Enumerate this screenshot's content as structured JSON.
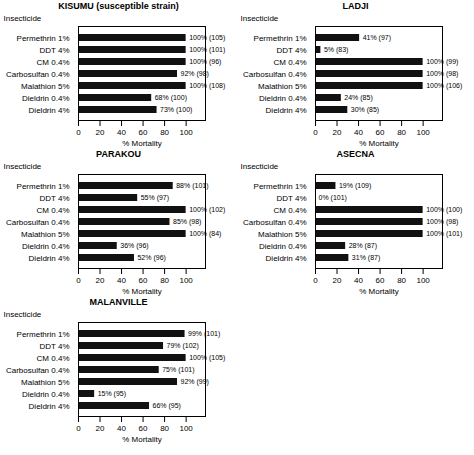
{
  "chart_data": [
    {
      "type": "bar",
      "orientation": "horizontal",
      "title": "KISUMU (susceptible strain)",
      "categories": [
        "Permethrin 1%",
        "DDT 4%",
        "CM 0.4%",
        "Carbosulfan 0.4%",
        "Malathion 5%",
        "Dieldrin 0.4%",
        "Dieldrin 4%"
      ],
      "values": [
        100,
        100,
        100,
        92,
        100,
        68,
        73
      ],
      "value_labels": [
        "100% (105)",
        "100% (101)",
        "100% (96)",
        "92% (98)",
        "100% (108)",
        "68% (100)",
        "73% (100)"
      ],
      "data_labels": true,
      "color": "#111111",
      "xlabel": "% Mortality",
      "ylabel": "Insecticide",
      "xlim": [
        0,
        118
      ],
      "xticks": [
        0,
        20,
        40,
        60,
        80,
        100
      ],
      "grid": false
    },
    {
      "type": "bar",
      "orientation": "horizontal",
      "title": "LADJI",
      "categories": [
        "Permethrin 1%",
        "DDT 4%",
        "CM 0.4%",
        "Carbosulfan 0.4%",
        "Malathion 5%",
        "Dieldrin 0.4%",
        "Dieldrin 4%"
      ],
      "values": [
        41,
        5,
        100,
        100,
        100,
        24,
        30
      ],
      "value_labels": [
        "41% (97)",
        "5% (83)",
        "100% (99)",
        "100% (98)",
        "100% (106)",
        "24% (85)",
        "30% (85)"
      ],
      "data_labels": true,
      "color": "#111111",
      "xlabel": "% Mortality",
      "ylabel": "Insecticide",
      "xlim": [
        0,
        118
      ],
      "xticks": [
        0,
        20,
        40,
        60,
        80,
        100
      ],
      "grid": false
    },
    {
      "type": "bar",
      "orientation": "horizontal",
      "title": "PARAKOU",
      "categories": [
        "Permethrin 1%",
        "DDT 4%",
        "CM 0.4%",
        "Carbosulfan 0.4%",
        "Malathion 5%",
        "Dieldrin 0.4%",
        "Dieldrin 4%"
      ],
      "values": [
        88,
        55,
        100,
        85,
        100,
        36,
        52
      ],
      "value_labels": [
        "88% (101)",
        "55% (97)",
        "100% (102)",
        "85% (98)",
        "100% (84)",
        "36% (96)",
        "52% (96)"
      ],
      "data_labels": true,
      "color": "#111111",
      "xlabel": "% Mortality",
      "ylabel": "Insecticide",
      "xlim": [
        0,
        118
      ],
      "xticks": [
        0,
        20,
        40,
        60,
        80,
        100
      ],
      "grid": false
    },
    {
      "type": "bar",
      "orientation": "horizontal",
      "title": "ASECNA",
      "categories": [
        "Permethrin 1%",
        "DDT 4%",
        "CM 0.4%",
        "Carbosulfan 0.4%",
        "Malathion 5%",
        "Dieldrin 0.4%",
        "Dieldrin 4%"
      ],
      "values": [
        19,
        0,
        100,
        100,
        100,
        28,
        31
      ],
      "value_labels": [
        "19% (109)",
        "0% (101)",
        "100% (100)",
        "100% (98)",
        "100% (101)",
        "28% (87)",
        "31% (87)"
      ],
      "data_labels": true,
      "color": "#111111",
      "xlabel": "% Mortality",
      "ylabel": "Insecticide",
      "xlim": [
        0,
        118
      ],
      "xticks": [
        0,
        20,
        40,
        60,
        80,
        100
      ],
      "grid": false
    },
    {
      "type": "bar",
      "orientation": "horizontal",
      "title": "MALANVILLE",
      "categories": [
        "Permethrin 1%",
        "DDT 4%",
        "CM 0.4%",
        "Carbosulfan 0.4%",
        "Malathion 5%",
        "Dieldrin 0.4%",
        "Dieldrin 4%"
      ],
      "values": [
        99,
        79,
        100,
        75,
        92,
        15,
        66
      ],
      "value_labels": [
        "99% (101)",
        "79% (102)",
        "100% (105)",
        "75% (101)",
        "92% (99)",
        "15% (95)",
        "66% (95)"
      ],
      "data_labels": true,
      "color": "#111111",
      "xlabel": "% Mortality",
      "ylabel": "Insecticide",
      "xlim": [
        0,
        118
      ],
      "xticks": [
        0,
        20,
        40,
        60,
        80,
        100
      ],
      "grid": false
    }
  ]
}
